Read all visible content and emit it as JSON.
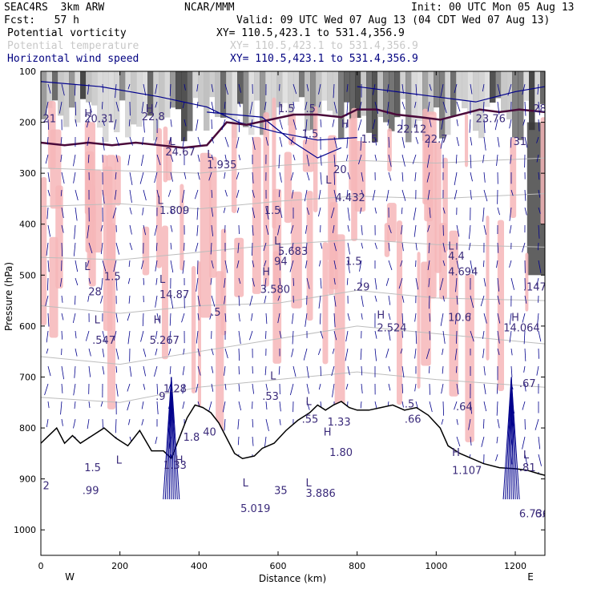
{
  "header": {
    "model": "SEAC4RS  3km ARW",
    "org": "NCAR/MMM",
    "init": "Init: 00 UTC Mon 05 Aug 13",
    "fcst": "Fcst:   57 h",
    "valid": "Valid: 09 UTC Wed 07 Aug 13 (04 CDT Wed 07 Aug 13)",
    "fields": [
      {
        "name": "Potential vorticity",
        "xy": "XY= 110.5,423.1 to 531.4,356.9",
        "color": "#000000"
      },
      {
        "name": "Potential temperature",
        "xy": "XY= 110.5,423.1 to 531.4,356.9",
        "color": "#c8c8c8"
      },
      {
        "name": "Horizontal wind speed",
        "xy": "XY= 110.5,423.1 to 531.4,356.9",
        "color": "#000080"
      }
    ]
  },
  "colors": {
    "pv_shading_dark": "#3a3a3a",
    "pv_shading_light": "#bcbcbc",
    "pink_fill": "#f6b6b8",
    "pv_contour": "#4a0a3a",
    "wind_vector": "#00008c",
    "theta_contour": "#bdbdbd",
    "terrain": "#000000"
  },
  "chart_data": {
    "type": "cross-section",
    "xlabel": "Distance (km)",
    "ylabel": "Pressure (hPa)",
    "x_ticks": [
      0,
      200,
      400,
      600,
      800,
      1000,
      1200
    ],
    "y_ticks": [
      100,
      200,
      300,
      400,
      500,
      600,
      700,
      800,
      900,
      1000
    ],
    "xlim": [
      0,
      1275
    ],
    "ylim": [
      1050,
      100
    ],
    "x_end_labels": {
      "left": "W",
      "right": "E"
    },
    "terrain_surface": [
      {
        "x": 0,
        "p": 830
      },
      {
        "x": 20,
        "p": 815
      },
      {
        "x": 40,
        "p": 800
      },
      {
        "x": 60,
        "p": 830
      },
      {
        "x": 80,
        "p": 815
      },
      {
        "x": 100,
        "p": 830
      },
      {
        "x": 130,
        "p": 815
      },
      {
        "x": 160,
        "p": 800
      },
      {
        "x": 190,
        "p": 820
      },
      {
        "x": 220,
        "p": 835
      },
      {
        "x": 250,
        "p": 805
      },
      {
        "x": 280,
        "p": 845
      },
      {
        "x": 310,
        "p": 845
      },
      {
        "x": 330,
        "p": 860
      },
      {
        "x": 350,
        "p": 820
      },
      {
        "x": 370,
        "p": 780
      },
      {
        "x": 390,
        "p": 755
      },
      {
        "x": 410,
        "p": 760
      },
      {
        "x": 430,
        "p": 770
      },
      {
        "x": 450,
        "p": 790
      },
      {
        "x": 470,
        "p": 820
      },
      {
        "x": 490,
        "p": 850
      },
      {
        "x": 510,
        "p": 860
      },
      {
        "x": 540,
        "p": 855
      },
      {
        "x": 560,
        "p": 840
      },
      {
        "x": 590,
        "p": 830
      },
      {
        "x": 620,
        "p": 805
      },
      {
        "x": 650,
        "p": 785
      },
      {
        "x": 680,
        "p": 770
      },
      {
        "x": 700,
        "p": 755
      },
      {
        "x": 720,
        "p": 765
      },
      {
        "x": 740,
        "p": 755
      },
      {
        "x": 760,
        "p": 748
      },
      {
        "x": 780,
        "p": 760
      },
      {
        "x": 800,
        "p": 765
      },
      {
        "x": 830,
        "p": 765
      },
      {
        "x": 860,
        "p": 760
      },
      {
        "x": 890,
        "p": 755
      },
      {
        "x": 920,
        "p": 765
      },
      {
        "x": 950,
        "p": 760
      },
      {
        "x": 980,
        "p": 775
      },
      {
        "x": 1010,
        "p": 800
      },
      {
        "x": 1030,
        "p": 835
      },
      {
        "x": 1060,
        "p": 850
      },
      {
        "x": 1090,
        "p": 860
      },
      {
        "x": 1120,
        "p": 870
      },
      {
        "x": 1160,
        "p": 878
      },
      {
        "x": 1200,
        "p": 880
      },
      {
        "x": 1230,
        "p": 883
      },
      {
        "x": 1260,
        "p": 890
      },
      {
        "x": 1275,
        "p": 893
      }
    ],
    "tropopause_contour": [
      {
        "x": 0,
        "p": 240
      },
      {
        "x": 60,
        "p": 245
      },
      {
        "x": 120,
        "p": 240
      },
      {
        "x": 180,
        "p": 245
      },
      {
        "x": 240,
        "p": 240
      },
      {
        "x": 300,
        "p": 245
      },
      {
        "x": 360,
        "p": 250
      },
      {
        "x": 420,
        "p": 245
      },
      {
        "x": 470,
        "p": 200
      },
      {
        "x": 520,
        "p": 205
      },
      {
        "x": 580,
        "p": 195
      },
      {
        "x": 640,
        "p": 185
      },
      {
        "x": 700,
        "p": 185
      },
      {
        "x": 760,
        "p": 190
      },
      {
        "x": 800,
        "p": 175
      },
      {
        "x": 850,
        "p": 175
      },
      {
        "x": 900,
        "p": 185
      },
      {
        "x": 960,
        "p": 190
      },
      {
        "x": 1010,
        "p": 195
      },
      {
        "x": 1060,
        "p": 185
      },
      {
        "x": 1110,
        "p": 175
      },
      {
        "x": 1160,
        "p": 180
      },
      {
        "x": 1210,
        "p": 175
      },
      {
        "x": 1275,
        "p": 180
      }
    ],
    "theta_contours": [
      {
        "points": [
          {
            "x": 0,
            "p": 290
          },
          {
            "x": 200,
            "p": 295
          },
          {
            "x": 400,
            "p": 300
          },
          {
            "x": 600,
            "p": 285
          },
          {
            "x": 800,
            "p": 275
          },
          {
            "x": 1000,
            "p": 280
          },
          {
            "x": 1275,
            "p": 270
          }
        ]
      },
      {
        "points": [
          {
            "x": 0,
            "p": 365
          },
          {
            "x": 200,
            "p": 360
          },
          {
            "x": 400,
            "p": 370
          },
          {
            "x": 600,
            "p": 355
          },
          {
            "x": 800,
            "p": 345
          },
          {
            "x": 1000,
            "p": 350
          },
          {
            "x": 1275,
            "p": 340
          }
        ]
      },
      {
        "points": [
          {
            "x": 0,
            "p": 465
          },
          {
            "x": 200,
            "p": 470
          },
          {
            "x": 400,
            "p": 455
          },
          {
            "x": 600,
            "p": 440
          },
          {
            "x": 800,
            "p": 430
          },
          {
            "x": 1000,
            "p": 440
          },
          {
            "x": 1275,
            "p": 445
          }
        ]
      },
      {
        "points": [
          {
            "x": 0,
            "p": 560
          },
          {
            "x": 200,
            "p": 575
          },
          {
            "x": 400,
            "p": 560
          },
          {
            "x": 600,
            "p": 555
          },
          {
            "x": 800,
            "p": 530
          },
          {
            "x": 1000,
            "p": 545
          },
          {
            "x": 1275,
            "p": 550
          }
        ]
      },
      {
        "points": [
          {
            "x": 0,
            "p": 660
          },
          {
            "x": 200,
            "p": 675
          },
          {
            "x": 400,
            "p": 650
          },
          {
            "x": 600,
            "p": 625
          },
          {
            "x": 800,
            "p": 600
          },
          {
            "x": 1000,
            "p": 615
          },
          {
            "x": 1275,
            "p": 635
          }
        ]
      },
      {
        "points": [
          {
            "x": 0,
            "p": 740
          },
          {
            "x": 200,
            "p": 750
          },
          {
            "x": 400,
            "p": 720
          },
          {
            "x": 600,
            "p": 705
          },
          {
            "x": 800,
            "p": 690
          },
          {
            "x": 1000,
            "p": 705
          },
          {
            "x": 1275,
            "p": 720
          }
        ]
      }
    ],
    "wind_contours": [
      {
        "points": [
          {
            "x": 0,
            "p": 120
          },
          {
            "x": 150,
            "p": 130
          },
          {
            "x": 300,
            "p": 150
          },
          {
            "x": 420,
            "p": 170
          },
          {
            "x": 500,
            "p": 200
          },
          {
            "x": 600,
            "p": 220
          },
          {
            "x": 700,
            "p": 235
          },
          {
            "x": 800,
            "p": 230
          }
        ]
      },
      {
        "points": [
          {
            "x": 420,
            "p": 180
          },
          {
            "x": 560,
            "p": 190
          },
          {
            "x": 640,
            "p": 240
          },
          {
            "x": 700,
            "p": 270
          },
          {
            "x": 760,
            "p": 250
          }
        ]
      },
      {
        "points": [
          {
            "x": 800,
            "p": 130
          },
          {
            "x": 900,
            "p": 140
          },
          {
            "x": 1000,
            "p": 150
          },
          {
            "x": 1100,
            "p": 160
          },
          {
            "x": 1200,
            "p": 140
          },
          {
            "x": 1275,
            "p": 130
          }
        ]
      }
    ],
    "annotations": [
      {
        "x": 5,
        "p": 200,
        "text": "21"
      },
      {
        "x": 110,
        "p": 190,
        "text": "H"
      },
      {
        "x": 110,
        "p": 200,
        "text": "20.31"
      },
      {
        "x": 265,
        "p": 180,
        "text": "H"
      },
      {
        "x": 255,
        "p": 196,
        "text": "22.8"
      },
      {
        "x": 600,
        "p": 180,
        "text": "1.5"
      },
      {
        "x": 670,
        "p": 180,
        "text": ".5"
      },
      {
        "x": 760,
        "p": 210,
        "text": "H"
      },
      {
        "x": 660,
        "p": 230,
        "text": "1.5"
      },
      {
        "x": 810,
        "p": 240,
        "text": "1.5"
      },
      {
        "x": 900,
        "p": 220,
        "text": "22.12"
      },
      {
        "x": 970,
        "p": 240,
        "text": "22.7"
      },
      {
        "x": 1100,
        "p": 200,
        "text": "23.76"
      },
      {
        "x": 1245,
        "p": 180,
        "text": "28"
      },
      {
        "x": 1195,
        "p": 245,
        "text": "31"
      },
      {
        "x": 325,
        "p": 245,
        "text": "L"
      },
      {
        "x": 315,
        "p": 265,
        "text": "24.67"
      },
      {
        "x": 420,
        "p": 270,
        "text": "L"
      },
      {
        "x": 420,
        "p": 290,
        "text": "1.935"
      },
      {
        "x": 740,
        "p": 300,
        "text": "20"
      },
      {
        "x": 720,
        "p": 320,
        "text": "L"
      },
      {
        "x": 745,
        "p": 355,
        "text": "4.432"
      },
      {
        "x": 295,
        "p": 360,
        "text": "L"
      },
      {
        "x": 300,
        "p": 380,
        "text": "1.809"
      },
      {
        "x": 565,
        "p": 380,
        "text": "1.5"
      },
      {
        "x": 590,
        "p": 440,
        "text": "L"
      },
      {
        "x": 600,
        "p": 460,
        "text": "5.683"
      },
      {
        "x": 590,
        "p": 480,
        "text": "94"
      },
      {
        "x": 1030,
        "p": 450,
        "text": "L"
      },
      {
        "x": 1030,
        "p": 470,
        "text": "4.4"
      },
      {
        "x": 770,
        "p": 480,
        "text": "1.5"
      },
      {
        "x": 1030,
        "p": 500,
        "text": "4.694"
      },
      {
        "x": 110,
        "p": 490,
        "text": "L"
      },
      {
        "x": 160,
        "p": 510,
        "text": "1.5"
      },
      {
        "x": 120,
        "p": 540,
        "text": "28"
      },
      {
        "x": 560,
        "p": 500,
        "text": "H"
      },
      {
        "x": 555,
        "p": 535,
        "text": "3.580"
      },
      {
        "x": 300,
        "p": 515,
        "text": "L"
      },
      {
        "x": 300,
        "p": 545,
        "text": "14.87"
      },
      {
        "x": 790,
        "p": 530,
        "text": ".29"
      },
      {
        "x": 1220,
        "p": 530,
        "text": ".147"
      },
      {
        "x": 430,
        "p": 580,
        "text": ".5"
      },
      {
        "x": 135,
        "p": 595,
        "text": "L"
      },
      {
        "x": 130,
        "p": 635,
        "text": ".547"
      },
      {
        "x": 285,
        "p": 595,
        "text": "H"
      },
      {
        "x": 275,
        "p": 635,
        "text": "5.267"
      },
      {
        "x": 850,
        "p": 585,
        "text": "H"
      },
      {
        "x": 850,
        "p": 610,
        "text": "2.524"
      },
      {
        "x": 1030,
        "p": 590,
        "text": "10.6"
      },
      {
        "x": 1190,
        "p": 590,
        "text": "H"
      },
      {
        "x": 1170,
        "p": 610,
        "text": "14.064"
      },
      {
        "x": 310,
        "p": 730,
        "text": "1.28"
      },
      {
        "x": 290,
        "p": 745,
        "text": ".9"
      },
      {
        "x": 580,
        "p": 705,
        "text": "L"
      },
      {
        "x": 560,
        "p": 745,
        "text": ".53"
      },
      {
        "x": 670,
        "p": 755,
        "text": "L"
      },
      {
        "x": 660,
        "p": 790,
        "text": ".55"
      },
      {
        "x": 1210,
        "p": 720,
        "text": ".67"
      },
      {
        "x": 1050,
        "p": 765,
        "text": ".64"
      },
      {
        "x": 920,
        "p": 760,
        "text": ".5"
      },
      {
        "x": 920,
        "p": 790,
        "text": ".66"
      },
      {
        "x": 725,
        "p": 795,
        "text": "1.33"
      },
      {
        "x": 715,
        "p": 815,
        "text": "H"
      },
      {
        "x": 730,
        "p": 855,
        "text": "1.80"
      },
      {
        "x": 360,
        "p": 825,
        "text": "1.8"
      },
      {
        "x": 410,
        "p": 815,
        "text": "40"
      },
      {
        "x": 340,
        "p": 870,
        "text": "H"
      },
      {
        "x": 310,
        "p": 880,
        "text": "1.33"
      },
      {
        "x": 110,
        "p": 885,
        "text": "1.5"
      },
      {
        "x": 105,
        "p": 930,
        "text": ".99"
      },
      {
        "x": 190,
        "p": 870,
        "text": "L"
      },
      {
        "x": 5,
        "p": 920,
        "text": "2"
      },
      {
        "x": 510,
        "p": 915,
        "text": "L"
      },
      {
        "x": 505,
        "p": 965,
        "text": "5.019"
      },
      {
        "x": 590,
        "p": 930,
        "text": "35"
      },
      {
        "x": 670,
        "p": 915,
        "text": "L"
      },
      {
        "x": 670,
        "p": 935,
        "text": "3.886"
      },
      {
        "x": 1040,
        "p": 855,
        "text": "H"
      },
      {
        "x": 1040,
        "p": 890,
        "text": "1.107"
      },
      {
        "x": 1220,
        "p": 860,
        "text": "L"
      },
      {
        "x": 1210,
        "p": 885,
        "text": ".81"
      },
      {
        "x": 1210,
        "p": 975,
        "text": "6.736"
      },
      {
        "x": 1250,
        "p": 975,
        "text": "6.6"
      }
    ]
  }
}
